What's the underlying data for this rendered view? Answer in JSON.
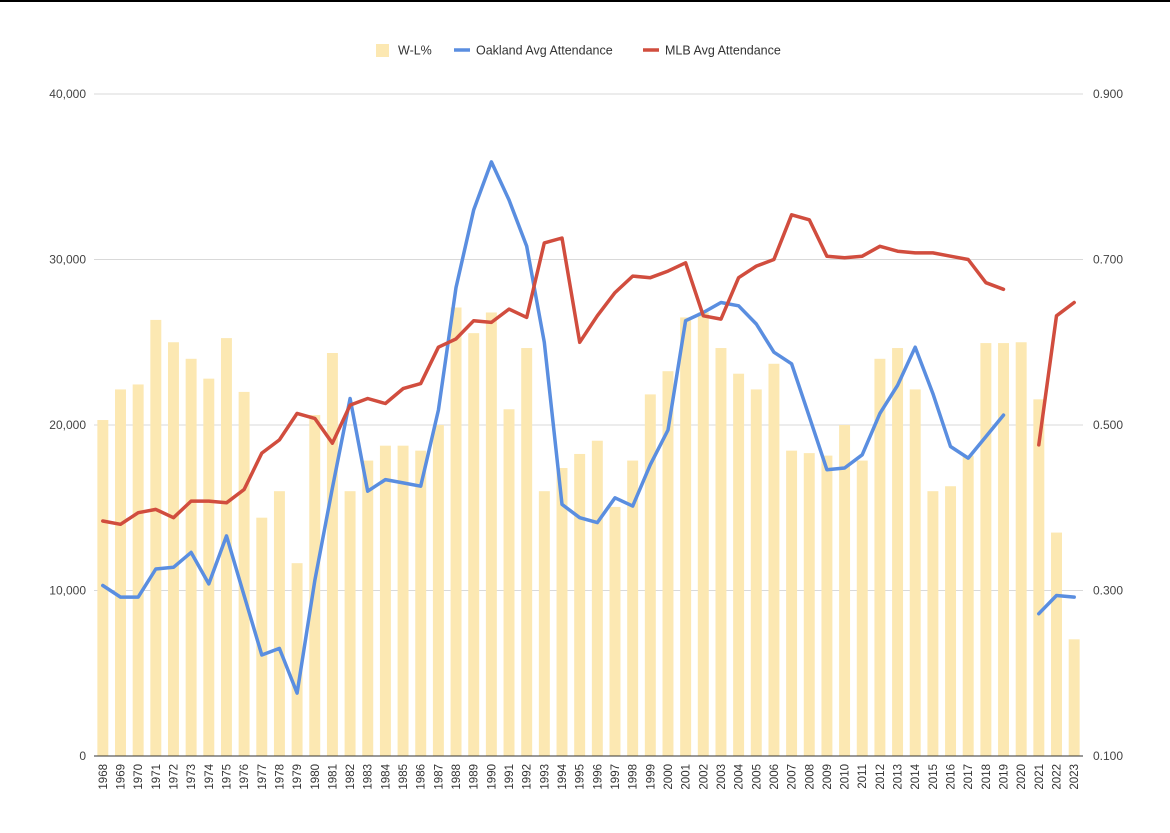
{
  "chart_data": {
    "type": "bar+line",
    "title": "",
    "xlabel": "",
    "ylabel_left": "",
    "ylabel_right": "",
    "categories": [
      "1968",
      "1969",
      "1970",
      "1971",
      "1972",
      "1973",
      "1974",
      "1975",
      "1976",
      "1977",
      "1978",
      "1979",
      "1980",
      "1981",
      "1982",
      "1983",
      "1984",
      "1985",
      "1986",
      "1987",
      "1988",
      "1989",
      "1990",
      "1991",
      "1992",
      "1993",
      "1994",
      "1995",
      "1996",
      "1997",
      "1998",
      "1999",
      "2000",
      "2001",
      "2002",
      "2003",
      "2004",
      "2005",
      "2006",
      "2007",
      "2008",
      "2009",
      "2010",
      "2011",
      "2012",
      "2013",
      "2014",
      "2015",
      "2016",
      "2017",
      "2018",
      "2019",
      "2020",
      "2021",
      "2022",
      "2023"
    ],
    "y_left": {
      "min": 0,
      "max": 40000,
      "ticks": [
        0,
        10000,
        20000,
        30000,
        40000
      ],
      "tick_labels": [
        "0",
        "10,000",
        "20,000",
        "30,000",
        "40,000"
      ]
    },
    "y_right": {
      "min": 0.1,
      "max": 0.9,
      "ticks": [
        0.1,
        0.3,
        0.5,
        0.7,
        0.9
      ],
      "tick_labels": [
        "0.100",
        "0.300",
        "0.500",
        "0.700",
        "0.900"
      ]
    },
    "grid": true,
    "legend_position": "top-center",
    "series": [
      {
        "name": "W-L%",
        "type": "bar",
        "axis": "right",
        "color": "#fce8b2",
        "values": [
          0.506,
          0.543,
          0.549,
          0.627,
          0.6,
          0.58,
          0.556,
          0.605,
          0.54,
          0.388,
          0.42,
          0.333,
          0.512,
          0.587,
          0.42,
          0.457,
          0.475,
          0.475,
          0.469,
          0.5,
          0.642,
          0.611,
          0.636,
          0.519,
          0.593,
          0.42,
          0.448,
          0.465,
          0.481,
          0.401,
          0.457,
          0.537,
          0.565,
          0.63,
          0.636,
          0.593,
          0.562,
          0.543,
          0.574,
          0.469,
          0.466,
          0.463,
          0.5,
          0.457,
          0.58,
          0.593,
          0.543,
          0.42,
          0.426,
          0.463,
          0.599,
          0.599,
          0.6,
          0.531,
          0.37,
          0.241
        ]
      },
      {
        "name": "Oakland Avg Attendance",
        "type": "line",
        "axis": "left",
        "color": "#5a8ee0",
        "values": [
          10300,
          9600,
          9600,
          11300,
          11400,
          12300,
          10400,
          13300,
          9700,
          6100,
          6500,
          3800,
          10600,
          16200,
          21600,
          16000,
          16700,
          16500,
          16300,
          20900,
          28300,
          33000,
          35900,
          33600,
          30800,
          25000,
          15200,
          14400,
          14100,
          15600,
          15100,
          17600,
          19700,
          26300,
          26800,
          27400,
          27200,
          26100,
          24400,
          23700,
          20500,
          17300,
          17400,
          18200,
          20700,
          22400,
          24700,
          21900,
          18700,
          18000,
          19300,
          20600,
          null,
          8600,
          9700,
          9600
        ]
      },
      {
        "name": "MLB Avg Attendance",
        "type": "line",
        "axis": "left",
        "color": "#d14d3e",
        "values": [
          14200,
          14000,
          14700,
          14900,
          14400,
          15400,
          15400,
          15300,
          16100,
          18300,
          19100,
          20700,
          20400,
          18900,
          21200,
          21600,
          21300,
          22200,
          22500,
          24700,
          25200,
          26300,
          26200,
          27000,
          26500,
          31000,
          31300,
          25000,
          26600,
          28000,
          29000,
          28900,
          29300,
          29800,
          26600,
          26400,
          28900,
          29600,
          30000,
          32700,
          32400,
          30200,
          30100,
          30200,
          30800,
          30500,
          30400,
          30400,
          30200,
          30000,
          28600,
          28200,
          null,
          18800,
          26600,
          27400
        ]
      }
    ]
  }
}
